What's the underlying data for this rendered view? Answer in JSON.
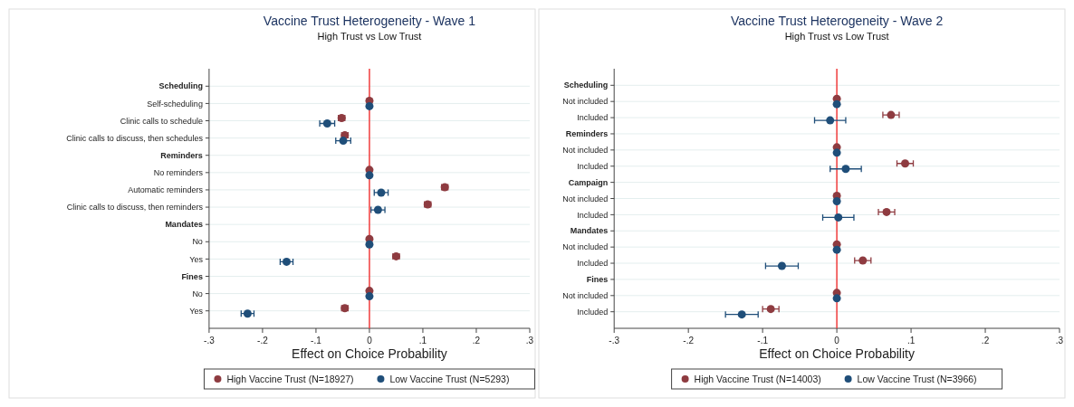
{
  "chart_data": [
    {
      "type": "scatter",
      "orientation": "horizontal",
      "title": "Vaccine Trust Heterogeneity - Wave 1",
      "subtitle": "High Trust vs Low Trust",
      "xlabel": "Effect on Choice Probability",
      "categories": [
        "Scheduling",
        "Self-scheduling",
        "Clinic calls to schedule",
        "Clinic calls to discuss, then schedules",
        "Reminders",
        "No reminders",
        "Automatic reminders",
        "Clinic calls to discuss, then reminders",
        "Mandates",
        "No",
        "Yes",
        "Fines",
        "No",
        "Yes"
      ],
      "series": [
        {
          "name": "High Vaccine Trust (N=18927)",
          "color": "#8e3b40",
          "values": [
            null,
            0,
            -0.052,
            -0.046,
            null,
            0,
            0.141,
            0.109,
            null,
            0,
            0.05,
            null,
            0,
            -0.046
          ],
          "errors": [
            null,
            null,
            0.006,
            0.006,
            null,
            null,
            0.006,
            0.006,
            null,
            null,
            0.006,
            null,
            null,
            0.006
          ]
        },
        {
          "name": "Low Vaccine Trust (N=5293)",
          "color": "#1f4e79",
          "values": [
            null,
            0,
            -0.079,
            -0.049,
            null,
            0,
            0.022,
            0.016,
            null,
            0,
            -0.155,
            null,
            0,
            -0.228
          ],
          "errors": [
            null,
            null,
            0.014,
            0.014,
            null,
            null,
            0.013,
            0.013,
            null,
            null,
            0.012,
            null,
            null,
            0.012
          ]
        }
      ],
      "xlim": [
        -0.3,
        0.3
      ],
      "xticks": [
        {
          "value": -0.3,
          "label": "-.3"
        },
        {
          "value": -0.2,
          "label": "-.2"
        },
        {
          "value": -0.1,
          "label": "-.1"
        },
        0,
        {
          "value": 0.1,
          "label": ".1"
        },
        {
          "value": 0.2,
          "label": ".2"
        },
        {
          "value": 0.3,
          "label": ".3"
        }
      ],
      "ref_lines": [
        {
          "axis": "x",
          "value": 0,
          "color": "#f03c3c"
        }
      ],
      "grid": "y",
      "legend": "bottom",
      "marker": "circle"
    },
    {
      "type": "scatter",
      "orientation": "horizontal",
      "title": "Vaccine Trust Heterogeneity - Wave 2",
      "subtitle": "High Trust vs Low Trust",
      "xlabel": "Effect on Choice Probability",
      "categories": [
        "Scheduling",
        "Not included",
        "Included",
        "Reminders",
        "Not included",
        "Included",
        "Campaign",
        "Not included",
        "Included",
        "Mandates",
        "Not included",
        "Included",
        "Fines",
        "Not included",
        "Included"
      ],
      "series": [
        {
          "name": "High Vaccine Trust (N=14003)",
          "color": "#8e3b40",
          "values": [
            null,
            0,
            0.073,
            null,
            0,
            0.092,
            null,
            0,
            0.067,
            null,
            0,
            0.035,
            null,
            0,
            -0.089
          ],
          "errors": [
            null,
            null,
            0.011,
            null,
            null,
            0.011,
            null,
            null,
            0.011,
            null,
            null,
            0.011,
            null,
            null,
            0.011
          ]
        },
        {
          "name": "Low Vaccine Trust (N=3966)",
          "color": "#1f4e79",
          "values": [
            null,
            0,
            -0.009,
            null,
            0,
            0.012,
            null,
            0,
            0.002,
            null,
            0,
            -0.074,
            null,
            0,
            -0.128
          ],
          "errors": [
            null,
            null,
            0.021,
            null,
            null,
            0.021,
            null,
            null,
            0.021,
            null,
            null,
            0.022,
            null,
            null,
            0.022
          ]
        }
      ],
      "xlim": [
        -0.3,
        0.3
      ],
      "xticks": [
        {
          "value": -0.3,
          "label": "-.3"
        },
        {
          "value": -0.2,
          "label": "-.2"
        },
        {
          "value": -0.1,
          "label": "-.1"
        },
        0,
        {
          "value": 0.1,
          "label": ".1"
        },
        {
          "value": 0.2,
          "label": ".2"
        },
        {
          "value": 0.3,
          "label": ".3"
        }
      ],
      "ref_lines": [
        {
          "axis": "x",
          "value": 0,
          "color": "#f03c3c"
        }
      ],
      "grid": "y",
      "legend": "bottom",
      "marker": "circle"
    }
  ]
}
